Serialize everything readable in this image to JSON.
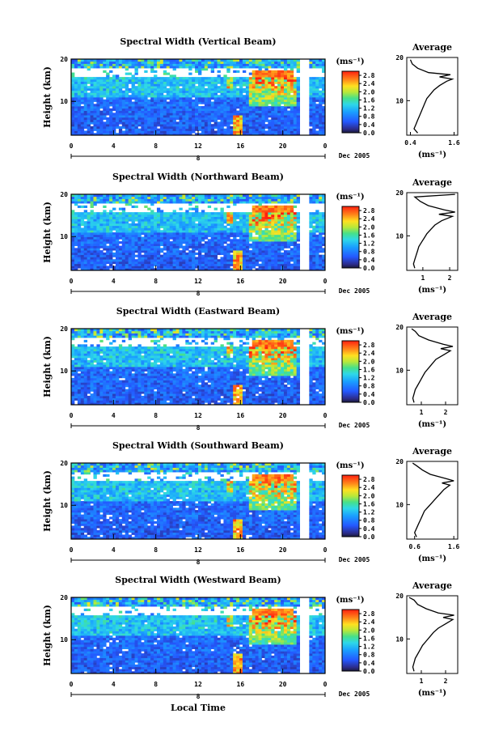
{
  "figure": {
    "x_axis_label": "Local Time",
    "date_label": "Dec 2005",
    "day_label": "8",
    "unit_label": "(ms⁻¹)"
  },
  "chart_data": [
    {
      "type": "heatmap",
      "title": "Spectral Width (Vertical Beam)",
      "ylabel": "Height (km)",
      "xlabel": "Local Time",
      "x_ticks": [
        "0",
        "4",
        "8",
        "12",
        "16",
        "20",
        "0"
      ],
      "y_ticks": [
        "10",
        "20"
      ],
      "xlim": [
        0,
        24
      ],
      "ylim": [
        2,
        20
      ],
      "colorbar": {
        "ticks": [
          "2.8",
          "2.4",
          "2.0",
          "1.6",
          "1.2",
          "0.8",
          "0.4",
          "0.0"
        ],
        "range": [
          0,
          3.0
        ]
      },
      "average": {
        "title": "Average",
        "x_ticks": [
          "0.4",
          "1.6"
        ],
        "xlim": [
          0.3,
          1.7
        ],
        "y_ticks": [
          "10",
          "20"
        ],
        "ylim": [
          2,
          20
        ],
        "xlabel": "(ms⁻¹)",
        "profile": [
          [
            0.6,
            2.5
          ],
          [
            0.5,
            3.5
          ],
          [
            0.55,
            4.5
          ],
          [
            0.6,
            5.5
          ],
          [
            0.65,
            6.5
          ],
          [
            0.7,
            7.5
          ],
          [
            0.75,
            8.5
          ],
          [
            0.8,
            9.5
          ],
          [
            0.85,
            10.5
          ],
          [
            0.95,
            11.5
          ],
          [
            1.05,
            12.5
          ],
          [
            1.2,
            13.5
          ],
          [
            1.4,
            14.5
          ],
          [
            1.55,
            15.0
          ],
          [
            1.2,
            15.5
          ],
          [
            1.5,
            16.0
          ],
          [
            0.9,
            16.5
          ],
          [
            0.6,
            17.5
          ],
          [
            0.45,
            18.5
          ],
          [
            0.4,
            19.5
          ]
        ]
      }
    },
    {
      "type": "heatmap",
      "title": "Spectral Width (Northward Beam)",
      "ylabel": "Height (km)",
      "xlabel": "Local Time",
      "x_ticks": [
        "0",
        "4",
        "8",
        "12",
        "16",
        "20",
        "0"
      ],
      "y_ticks": [
        "10",
        "20"
      ],
      "xlim": [
        0,
        24
      ],
      "ylim": [
        2,
        20
      ],
      "colorbar": {
        "ticks": [
          "2.8",
          "2.4",
          "2.0",
          "1.6",
          "1.2",
          "0.8",
          "0.4",
          "0.0"
        ],
        "range": [
          0,
          3.0
        ]
      },
      "average": {
        "title": "Average",
        "x_ticks": [
          "1",
          "2"
        ],
        "xlim": [
          0.4,
          2.3
        ],
        "y_ticks": [
          "10",
          "20"
        ],
        "ylim": [
          2,
          20
        ],
        "xlabel": "(ms⁻¹)",
        "profile": [
          [
            0.7,
            2.5
          ],
          [
            0.65,
            3.5
          ],
          [
            0.7,
            4.5
          ],
          [
            0.75,
            5.5
          ],
          [
            0.8,
            6.5
          ],
          [
            0.85,
            7.5
          ],
          [
            0.95,
            8.5
          ],
          [
            1.05,
            9.5
          ],
          [
            1.15,
            10.5
          ],
          [
            1.3,
            11.5
          ],
          [
            1.45,
            12.5
          ],
          [
            1.7,
            13.5
          ],
          [
            2.1,
            14.5
          ],
          [
            1.6,
            15.0
          ],
          [
            2.2,
            15.5
          ],
          [
            1.8,
            16.0
          ],
          [
            1.2,
            17.0
          ],
          [
            0.9,
            18.0
          ],
          [
            0.7,
            19.0
          ],
          [
            2.2,
            19.6
          ]
        ]
      }
    },
    {
      "type": "heatmap",
      "title": "Spectral Width (Eastward Beam)",
      "ylabel": "Height (km)",
      "xlabel": "Local Time",
      "x_ticks": [
        "0",
        "4",
        "8",
        "12",
        "16",
        "20",
        "0"
      ],
      "y_ticks": [
        "10",
        "20"
      ],
      "xlim": [
        0,
        24
      ],
      "ylim": [
        2,
        20
      ],
      "colorbar": {
        "ticks": [
          "2.8",
          "2.4",
          "2.0",
          "1.6",
          "1.2",
          "0.8",
          "0.4",
          "0.0"
        ],
        "range": [
          0,
          3.0
        ]
      },
      "average": {
        "title": "Average",
        "x_ticks": [
          "1",
          "2"
        ],
        "xlim": [
          0.4,
          2.5
        ],
        "y_ticks": [
          "10",
          "20"
        ],
        "ylim": [
          2,
          20
        ],
        "xlabel": "(ms⁻¹)",
        "profile": [
          [
            0.7,
            2.5
          ],
          [
            0.65,
            3.5
          ],
          [
            0.7,
            4.5
          ],
          [
            0.75,
            5.5
          ],
          [
            0.85,
            6.5
          ],
          [
            0.95,
            7.5
          ],
          [
            1.05,
            8.5
          ],
          [
            1.15,
            9.5
          ],
          [
            1.3,
            10.5
          ],
          [
            1.45,
            11.5
          ],
          [
            1.6,
            12.5
          ],
          [
            1.9,
            13.5
          ],
          [
            2.2,
            14.5
          ],
          [
            1.8,
            15.0
          ],
          [
            2.3,
            15.5
          ],
          [
            1.9,
            16.0
          ],
          [
            1.3,
            17.0
          ],
          [
            0.9,
            18.0
          ],
          [
            0.75,
            19.0
          ],
          [
            0.6,
            19.6
          ]
        ]
      }
    },
    {
      "type": "heatmap",
      "title": "Spectral Width (Southward Beam)",
      "ylabel": "Height (km)",
      "xlabel": "Local Time",
      "x_ticks": [
        "0",
        "4",
        "8",
        "12",
        "16",
        "20",
        "0"
      ],
      "y_ticks": [
        "10",
        "20"
      ],
      "xlim": [
        0,
        24
      ],
      "ylim": [
        2,
        20
      ],
      "colorbar": {
        "ticks": [
          "2.8",
          "2.4",
          "2.0",
          "1.6",
          "1.2",
          "0.8",
          "0.4",
          "0.0"
        ],
        "range": [
          0,
          3.0
        ]
      },
      "average": {
        "title": "Average",
        "x_ticks": [
          "0.6",
          "1.6"
        ],
        "xlim": [
          0.4,
          1.7
        ],
        "y_ticks": [
          "10",
          "20"
        ],
        "ylim": [
          2,
          20
        ],
        "xlabel": "(ms⁻¹)",
        "profile": [
          [
            0.65,
            2.5
          ],
          [
            0.6,
            3.5
          ],
          [
            0.65,
            4.5
          ],
          [
            0.7,
            5.5
          ],
          [
            0.75,
            6.5
          ],
          [
            0.8,
            7.5
          ],
          [
            0.85,
            8.5
          ],
          [
            0.95,
            9.5
          ],
          [
            1.05,
            10.5
          ],
          [
            1.15,
            11.5
          ],
          [
            1.25,
            12.5
          ],
          [
            1.35,
            13.5
          ],
          [
            1.5,
            14.5
          ],
          [
            1.3,
            15.0
          ],
          [
            1.6,
            15.5
          ],
          [
            1.4,
            16.0
          ],
          [
            1.0,
            17.0
          ],
          [
            0.8,
            18.0
          ],
          [
            0.65,
            19.0
          ],
          [
            0.55,
            19.6
          ]
        ]
      }
    },
    {
      "type": "heatmap",
      "title": "Spectral Width (Westward Beam)",
      "ylabel": "Height (km)",
      "xlabel": "Local Time",
      "x_ticks": [
        "0",
        "4",
        "8",
        "12",
        "16",
        "20",
        "0"
      ],
      "y_ticks": [
        "10",
        "20"
      ],
      "xlim": [
        0,
        24
      ],
      "ylim": [
        2,
        20
      ],
      "colorbar": {
        "ticks": [
          "2.8",
          "2.4",
          "2.0",
          "1.6",
          "1.2",
          "0.8",
          "0.4",
          "0.0"
        ],
        "range": [
          0,
          3.0
        ]
      },
      "average": {
        "title": "Average",
        "x_ticks": [
          "1",
          "2"
        ],
        "xlim": [
          0.4,
          2.5
        ],
        "y_ticks": [
          "10",
          "20"
        ],
        "ylim": [
          2,
          20
        ],
        "xlabel": "(ms⁻¹)",
        "profile": [
          [
            0.7,
            2.5
          ],
          [
            0.65,
            3.5
          ],
          [
            0.7,
            4.5
          ],
          [
            0.75,
            5.5
          ],
          [
            0.85,
            6.5
          ],
          [
            0.95,
            7.5
          ],
          [
            1.05,
            8.5
          ],
          [
            1.2,
            9.5
          ],
          [
            1.35,
            10.5
          ],
          [
            1.5,
            11.5
          ],
          [
            1.7,
            12.5
          ],
          [
            2.0,
            13.5
          ],
          [
            2.3,
            14.5
          ],
          [
            1.9,
            15.0
          ],
          [
            2.35,
            15.5
          ],
          [
            1.7,
            16.0
          ],
          [
            1.2,
            17.0
          ],
          [
            0.85,
            18.0
          ],
          [
            0.7,
            19.0
          ],
          [
            0.5,
            19.6
          ]
        ]
      }
    }
  ]
}
